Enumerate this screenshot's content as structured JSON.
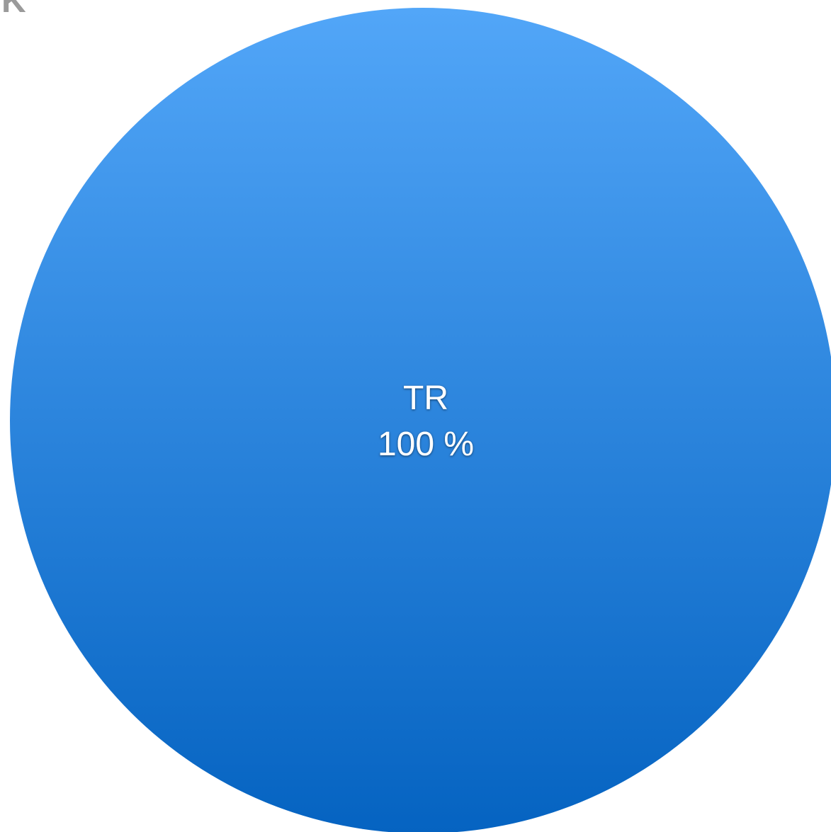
{
  "corner_text": "K",
  "chart_data": {
    "type": "pie",
    "slices": [
      {
        "label": "TR",
        "value": 100,
        "display": "100 %"
      }
    ],
    "colors": {
      "slice_top": "#52A6F8",
      "slice_bottom": "#0563C1",
      "label": "#FFFFFF",
      "corner_text": "#9A9A9A"
    }
  }
}
